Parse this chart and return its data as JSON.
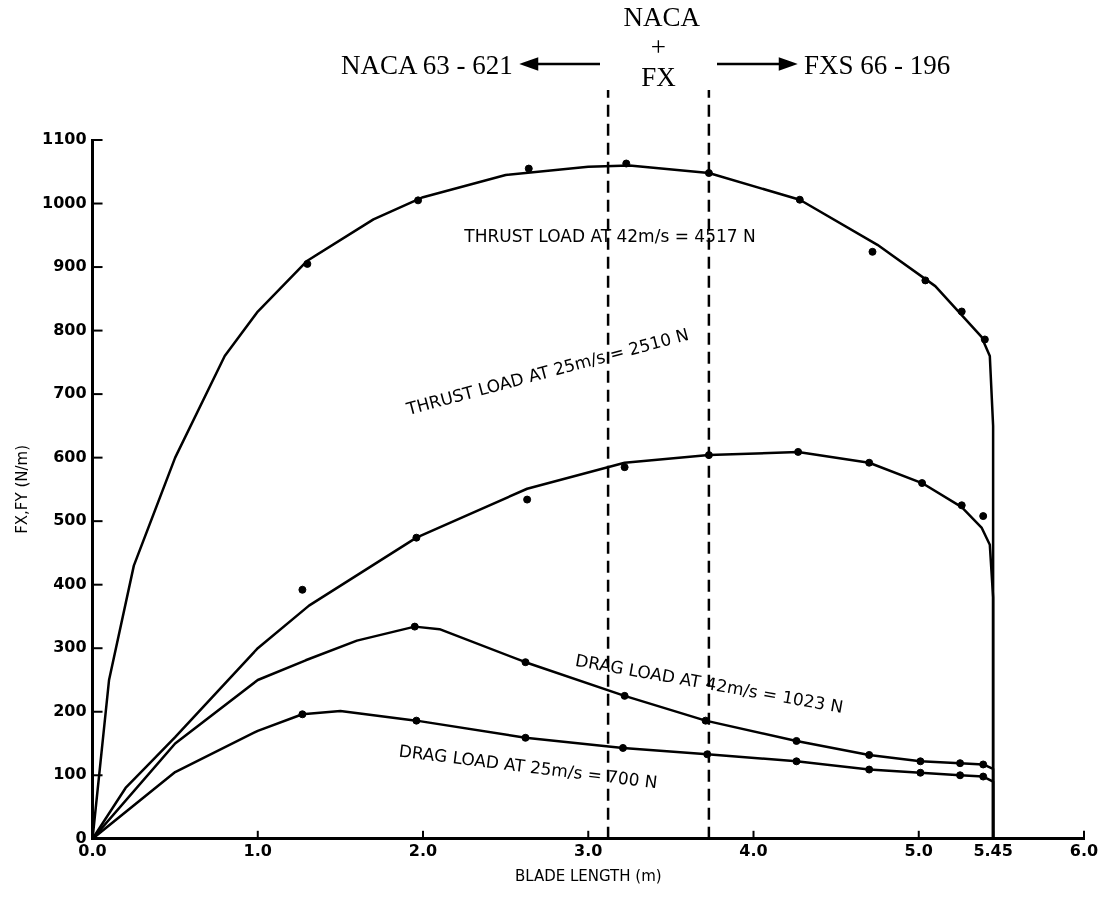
{
  "chart_data": {
    "type": "line",
    "xlabel": "BLADE LENGTH (m)",
    "ylabel": "FX,FY (N/m)",
    "xlim": [
      0,
      6
    ],
    "ylim": [
      0,
      1100
    ],
    "xticks": [
      {
        "value": 0,
        "label": "0.0"
      },
      {
        "value": 1,
        "label": "1.0"
      },
      {
        "value": 2,
        "label": "2.0"
      },
      {
        "value": 3,
        "label": "3.0"
      },
      {
        "value": 4,
        "label": "4.0"
      },
      {
        "value": 5,
        "label": "5.0"
      },
      5.45,
      {
        "value": 6,
        "label": "6.0"
      }
    ],
    "yticks": [
      0,
      100,
      200,
      300,
      400,
      500,
      600,
      700,
      800,
      900,
      1000,
      1100
    ],
    "grid": false,
    "legend": false,
    "marker": "circle",
    "line_style": "solid",
    "series": [
      {
        "marker": "none",
        "color": "#000000",
        "x": [
          0,
          0.1,
          0.25,
          0.5,
          0.8,
          1.0,
          1.3,
          1.7,
          2.0,
          2.5,
          3.0,
          3.25,
          3.73,
          4.28,
          4.75,
          5.1,
          5.38,
          5.43,
          5.45,
          5.45
        ],
        "values": [
          0,
          250,
          430,
          600,
          760,
          830,
          910,
          975,
          1010,
          1045,
          1058,
          1060,
          1048,
          1006,
          935,
          870,
          790,
          760,
          650,
          0
        ]
      },
      {
        "type": "scatter",
        "color": "#000000",
        "x": [
          1.3,
          1.97,
          2.64,
          3.23,
          3.73,
          4.28,
          4.72,
          5.04,
          5.26,
          5.4
        ],
        "values": [
          905,
          1005,
          1055,
          1063,
          1048,
          1006,
          924,
          879,
          830,
          786
        ]
      },
      {
        "marker": "none",
        "color": "#000000",
        "x": [
          0,
          0.2,
          0.5,
          1.0,
          1.31,
          1.96,
          2.63,
          3.22,
          3.73,
          4.27,
          4.7,
          5.02,
          5.26,
          5.38,
          5.43,
          5.45,
          5.45
        ],
        "values": [
          0,
          80,
          160,
          300,
          367,
          474,
          551,
          592,
          604,
          609,
          592,
          560,
          522,
          490,
          463,
          380,
          0
        ]
      },
      {
        "type": "scatter",
        "color": "#000000",
        "x": [
          1.27,
          1.96,
          2.63,
          3.22,
          3.73,
          4.27,
          4.7,
          5.02,
          5.26,
          5.39
        ],
        "values": [
          392,
          474,
          534,
          585,
          604,
          609,
          592,
          560,
          525,
          508
        ]
      },
      {
        "marker": "none",
        "color": "#000000",
        "x": [
          0,
          0.5,
          1.0,
          1.29,
          1.6,
          1.95,
          2.1,
          2.62,
          3.22,
          3.71,
          4.26,
          4.7,
          5.01,
          5.25,
          5.39,
          5.45,
          5.45
        ],
        "values": [
          0,
          150,
          250,
          281,
          312,
          334,
          330,
          278,
          225,
          186,
          154,
          132,
          122,
          119,
          117,
          110,
          0
        ]
      },
      {
        "type": "scatter",
        "color": "#000000",
        "x": [
          1.95,
          2.62,
          3.22,
          3.71,
          4.26,
          4.7,
          5.01,
          5.25,
          5.39
        ],
        "values": [
          334,
          278,
          225,
          186,
          154,
          132,
          122,
          119,
          117
        ]
      },
      {
        "marker": "none",
        "color": "#000000",
        "x": [
          0,
          0.5,
          1.0,
          1.27,
          1.5,
          1.96,
          2.62,
          3.21,
          3.72,
          4.26,
          4.7,
          5.01,
          5.25,
          5.39,
          5.45,
          5.45
        ],
        "values": [
          0,
          105,
          170,
          196,
          201,
          186,
          159,
          143,
          133,
          122,
          109,
          104,
          100,
          98,
          90,
          0
        ]
      },
      {
        "type": "scatter",
        "color": "#000000",
        "x": [
          1.27,
          1.96,
          2.62,
          3.21,
          3.72,
          4.26,
          4.7,
          5.01,
          5.25,
          5.39
        ],
        "values": [
          196,
          186,
          159,
          143,
          133,
          122,
          109,
          104,
          100,
          98
        ]
      }
    ],
    "ref_lines": [
      {
        "axis": "x",
        "value": 3.12,
        "line_style": "dashed",
        "color": "#000000"
      },
      {
        "axis": "x",
        "value": 3.73,
        "line_style": "dashed",
        "color": "#000000"
      }
    ],
    "annotations": [
      "NACA 63 - 621",
      "NACA + FX",
      "FXS 66 - 196",
      "THRUST LOAD AT 42m/s = 4517 N",
      "THRUST LOAD AT 25m/s = 2510 N",
      "DRAG LOAD AT 42m/s = 1023 N",
      "DRAG LOAD AT 25m/s = 700 N"
    ]
  }
}
